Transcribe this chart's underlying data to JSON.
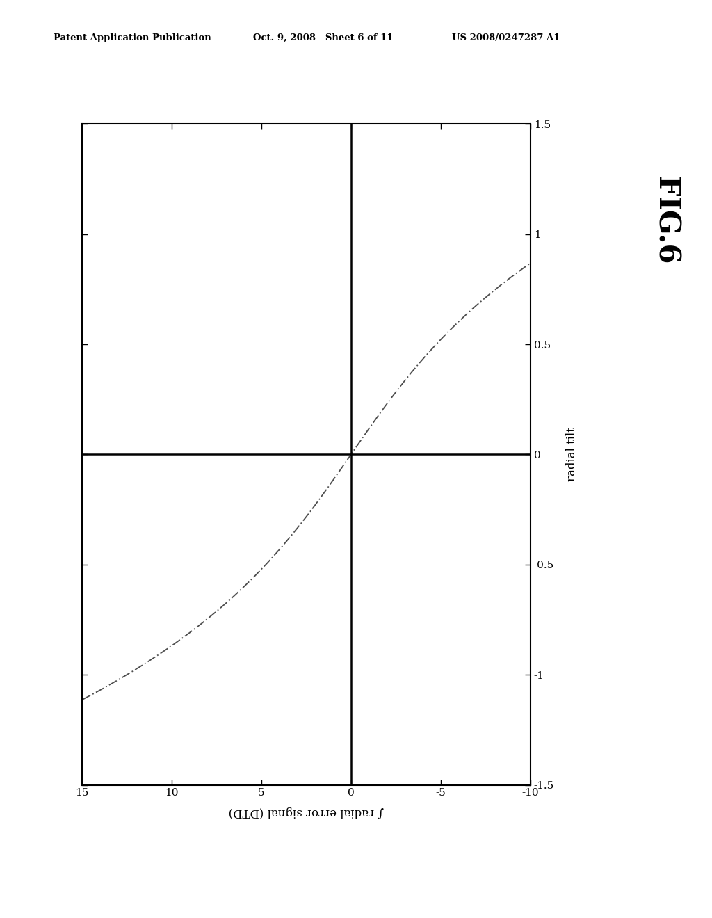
{
  "title": "FIG.6",
  "xlabel": "∫ radial error signal (DTD)",
  "ylabel": "radial tilt",
  "x_ticks": [
    15,
    10,
    5,
    0,
    -5,
    -10
  ],
  "x_tick_labels": [
    "15",
    "10",
    "5",
    "0",
    "-5",
    "-10"
  ],
  "y_ticks": [
    -1.5,
    -1,
    -0.5,
    0,
    0.5,
    1,
    1.5
  ],
  "y_tick_labels": [
    "-1.5",
    "-1",
    "-0.5",
    "0",
    "0.5",
    "1",
    "1.5"
  ],
  "xlim": [
    15,
    -10
  ],
  "ylim": [
    -1.5,
    1.5
  ],
  "header_left": "Patent Application Publication",
  "header_mid": "Oct. 9, 2008   Sheet 6 of 11",
  "header_right": "US 2008/0247287 A1",
  "background_color": "#ffffff",
  "curve_color": "#444444",
  "figsize": [
    10.24,
    13.2
  ],
  "dpi": 100
}
